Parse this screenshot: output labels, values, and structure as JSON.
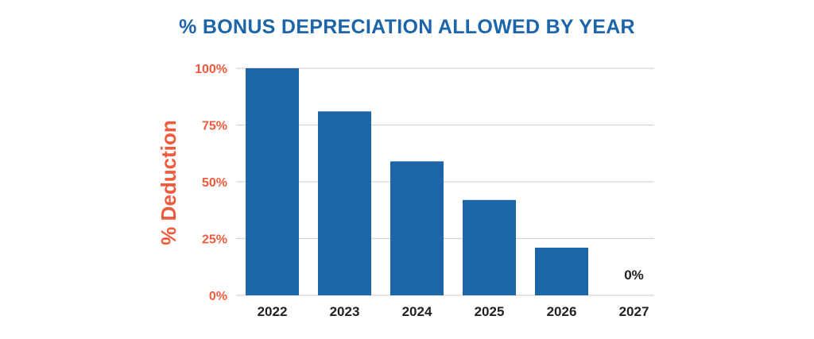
{
  "colors": {
    "title": "#1c65a8",
    "bar": "#1c65a8",
    "axis_labels": "#ef5a3c",
    "category_labels": "#222222",
    "gridline": "#d4d4d4"
  },
  "chart_data": {
    "type": "bar",
    "title": "% BONUS DEPRECIATION ALLOWED BY YEAR",
    "xlabel": "",
    "ylabel": "% Deduction",
    "categories": [
      "2022",
      "2023",
      "2024",
      "2025",
      "2026",
      "2027"
    ],
    "values": [
      100,
      81,
      59,
      42,
      21,
      0
    ],
    "ylim": [
      0,
      100
    ],
    "yticks": [
      0,
      25,
      50,
      75,
      100
    ],
    "ytick_labels": [
      "0%",
      "25%",
      "50%",
      "75%",
      "100%"
    ],
    "data_labels": [
      {
        "category": "2027",
        "text": "0%"
      }
    ],
    "grid": true,
    "legend": "none"
  }
}
